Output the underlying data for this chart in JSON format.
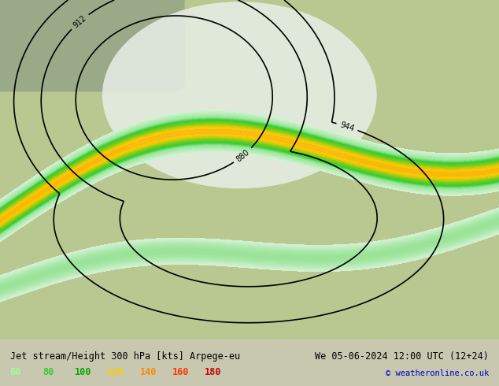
{
  "title_left": "Jet stream/Height 300 hPa [kts] Arpege-eu",
  "title_right": "We 05-06-2024 12:00 UTC (12+24)",
  "copyright": "© weatheronline.co.uk",
  "legend_values": [
    60,
    80,
    100,
    120,
    140,
    160,
    180
  ],
  "legend_colors": [
    "#99ff99",
    "#33cc33",
    "#00aa00",
    "#ffcc00",
    "#ff8800",
    "#ff3300",
    "#cc0000"
  ],
  "bg_color": "#c8d8a0",
  "ocean_color": "#a0b8d0",
  "land_color": "#c8d8a0",
  "map_bg": "#d0e0b0",
  "fig_width": 6.34,
  "fig_height": 4.9,
  "dpi": 100
}
